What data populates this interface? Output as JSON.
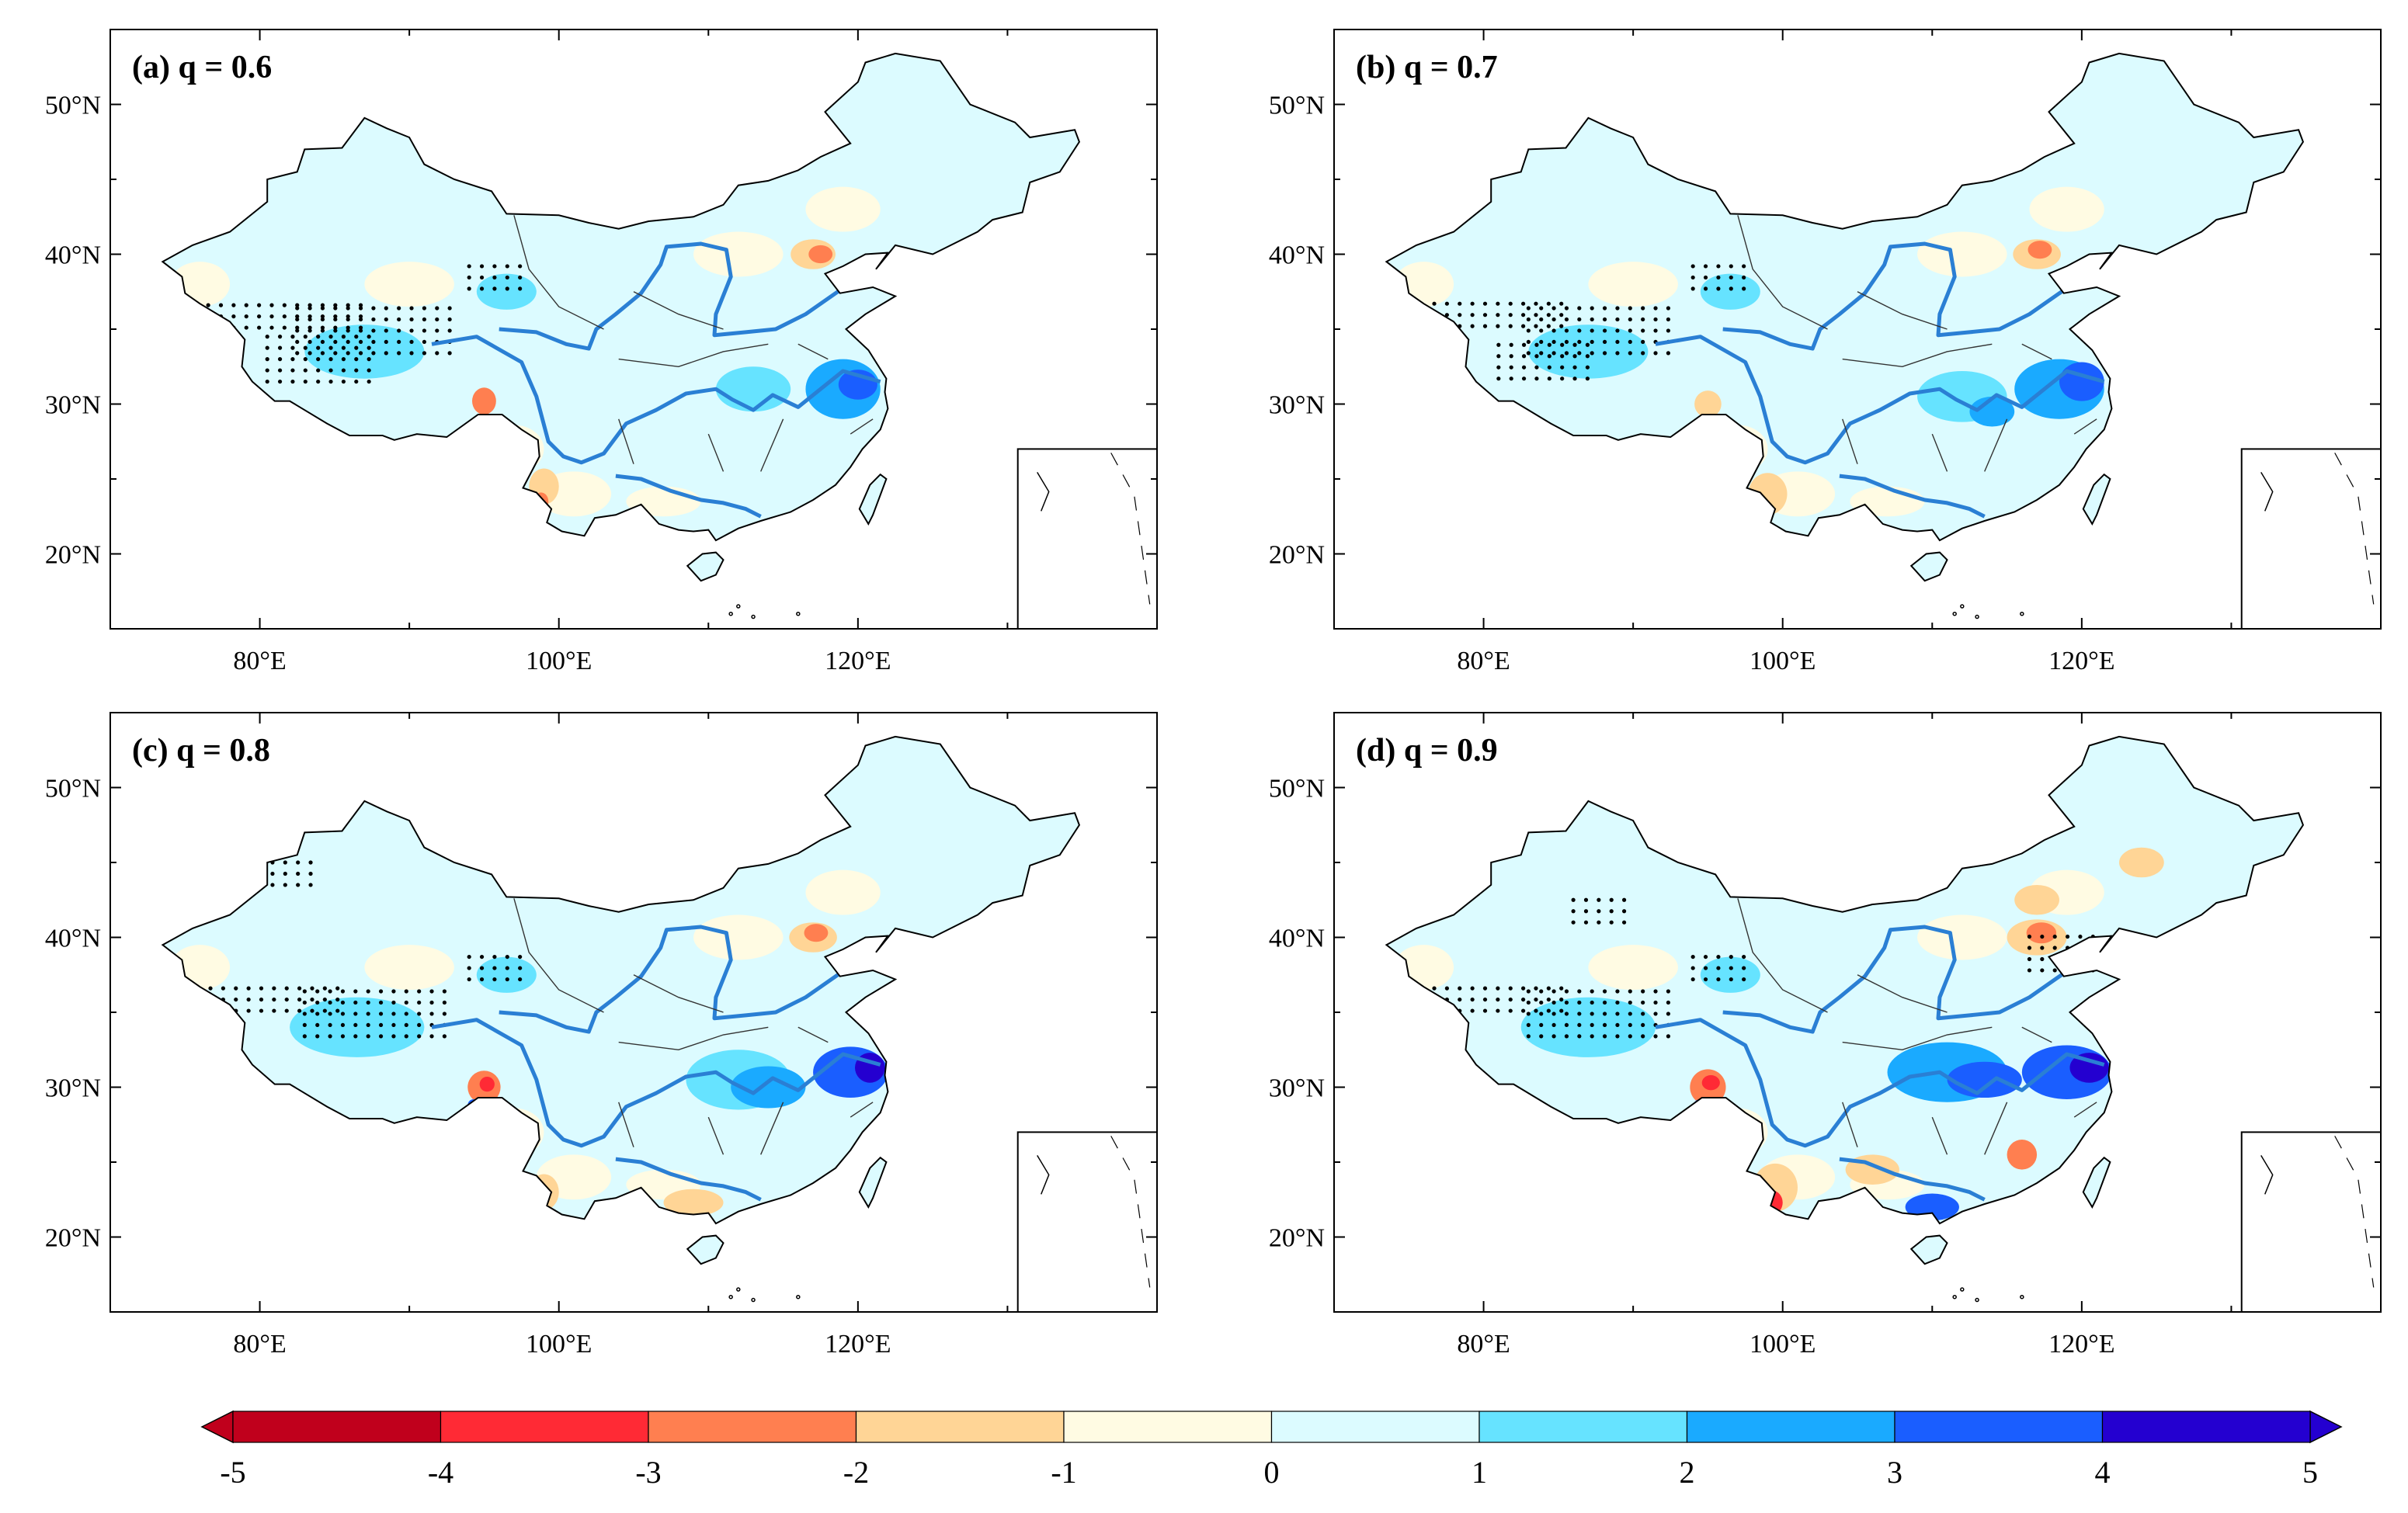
{
  "figure": {
    "panels": [
      {
        "id": "a",
        "title": "(a) q = 0.6"
      },
      {
        "id": "b",
        "title": "(b) q = 0.7"
      },
      {
        "id": "c",
        "title": "(c) q = 0.8"
      },
      {
        "id": "d",
        "title": "(d) q = 0.9"
      }
    ],
    "lat_labels": [
      "50°N",
      "40°N",
      "30°N",
      "20°N"
    ],
    "lon_labels": [
      "80°E",
      "100°E",
      "120°E"
    ]
  },
  "colorbar": {
    "labels": [
      "-5",
      "-4",
      "-3",
      "-2",
      "-1",
      "0",
      "1",
      "2",
      "3",
      "4",
      "5"
    ],
    "colors": [
      "#c0001c",
      "#ff2a35",
      "#ff7f50",
      "#ffd596",
      "#fffbe3",
      "#dcfbff",
      "#66e3ff",
      "#1aaaff",
      "#1a5eff",
      "#2400d0"
    ],
    "min_extend_color": "#c0001c",
    "max_extend_color": "#2400d0"
  },
  "colors": {
    "river": "#2a7fd4",
    "boundary": "#000000"
  }
}
